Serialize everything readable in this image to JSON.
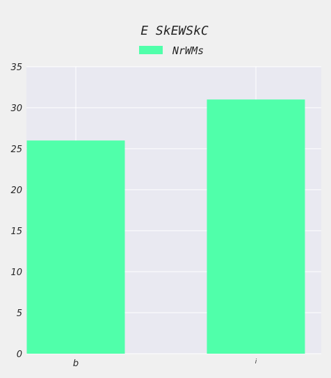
{
  "chart_data": {
    "type": "bar",
    "title": "E SkEWSkC",
    "xlabel": "",
    "ylabel": "",
    "categories": [
      "b",
      "i"
    ],
    "series": [
      {
        "name": "NrWMs",
        "values": [
          26,
          31
        ]
      }
    ],
    "ylim": [
      0,
      35
    ],
    "yticks": [
      0,
      5,
      10,
      15,
      20,
      25,
      30,
      35
    ],
    "grid": true,
    "legend_position": "top-center",
    "colors": {
      "bar": "#50ffaa",
      "plot_background": "#e9e9f1",
      "page_background": "#f0f0f0",
      "grid": "#ffffff",
      "text": "#262626"
    }
  }
}
